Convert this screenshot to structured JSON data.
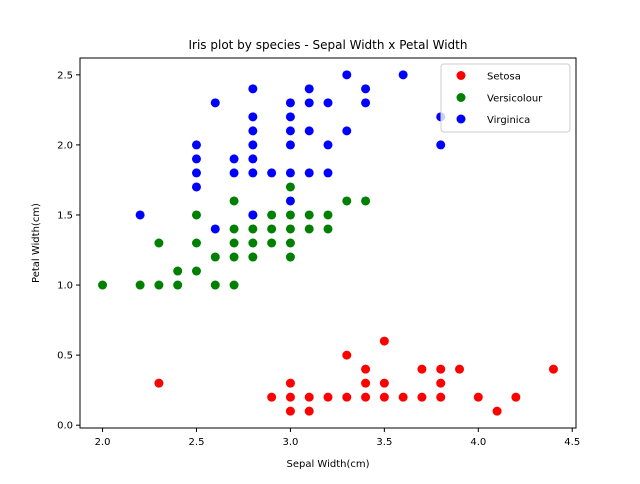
{
  "chart_data": {
    "type": "scatter",
    "title": "Iris plot by species - Sepal Width x Petal Width",
    "xlabel": "Sepal Width(cm)",
    "ylabel": "Petal Width(cm)",
    "xlim": [
      1.88,
      4.52
    ],
    "ylim": [
      -0.02,
      2.62
    ],
    "x_ticks": [
      2.0,
      2.5,
      3.0,
      3.5,
      4.0,
      4.5
    ],
    "x_tick_labels": [
      "2.0",
      "2.5",
      "3.0",
      "3.5",
      "4.0",
      "4.5"
    ],
    "y_ticks": [
      0.0,
      0.5,
      1.0,
      1.5,
      2.0,
      2.5
    ],
    "y_tick_labels": [
      "0.0",
      "0.5",
      "1.0",
      "1.5",
      "2.0",
      "2.5"
    ],
    "grid": false,
    "legend_position": "upper right",
    "series": [
      {
        "name": "Setosa",
        "color": "#ff0000",
        "points": [
          [
            2.3,
            0.3
          ],
          [
            2.9,
            0.2
          ],
          [
            3.0,
            0.3
          ],
          [
            3.0,
            0.2
          ],
          [
            3.0,
            0.1
          ],
          [
            3.1,
            0.2
          ],
          [
            3.1,
            0.1
          ],
          [
            3.2,
            0.2
          ],
          [
            3.3,
            0.5
          ],
          [
            3.3,
            0.2
          ],
          [
            3.4,
            0.4
          ],
          [
            3.4,
            0.3
          ],
          [
            3.4,
            0.2
          ],
          [
            3.5,
            0.6
          ],
          [
            3.5,
            0.3
          ],
          [
            3.5,
            0.2
          ],
          [
            3.6,
            0.2
          ],
          [
            3.7,
            0.4
          ],
          [
            3.7,
            0.2
          ],
          [
            3.8,
            0.4
          ],
          [
            3.8,
            0.3
          ],
          [
            3.8,
            0.2
          ],
          [
            3.9,
            0.4
          ],
          [
            4.0,
            0.2
          ],
          [
            4.1,
            0.1
          ],
          [
            4.2,
            0.2
          ],
          [
            4.4,
            0.4
          ]
        ]
      },
      {
        "name": "Versicolour",
        "color": "#008000",
        "points": [
          [
            2.0,
            1.0
          ],
          [
            2.2,
            1.0
          ],
          [
            2.3,
            1.3
          ],
          [
            2.3,
            1.0
          ],
          [
            2.4,
            1.1
          ],
          [
            2.4,
            1.0
          ],
          [
            2.5,
            1.5
          ],
          [
            2.5,
            1.3
          ],
          [
            2.5,
            1.1
          ],
          [
            2.6,
            1.2
          ],
          [
            2.6,
            1.0
          ],
          [
            2.7,
            1.6
          ],
          [
            2.7,
            1.4
          ],
          [
            2.7,
            1.3
          ],
          [
            2.7,
            1.2
          ],
          [
            2.7,
            1.0
          ],
          [
            2.8,
            1.5
          ],
          [
            2.8,
            1.4
          ],
          [
            2.8,
            1.3
          ],
          [
            2.8,
            1.2
          ],
          [
            2.9,
            1.5
          ],
          [
            2.9,
            1.4
          ],
          [
            2.9,
            1.3
          ],
          [
            3.0,
            1.7
          ],
          [
            3.0,
            1.5
          ],
          [
            3.0,
            1.4
          ],
          [
            3.0,
            1.3
          ],
          [
            3.0,
            1.2
          ],
          [
            3.1,
            1.5
          ],
          [
            3.1,
            1.4
          ],
          [
            3.2,
            1.5
          ],
          [
            3.2,
            1.4
          ],
          [
            3.3,
            1.6
          ],
          [
            3.4,
            1.6
          ]
        ]
      },
      {
        "name": "Virginica",
        "color": "#0000ff",
        "points": [
          [
            2.2,
            1.5
          ],
          [
            2.5,
            2.0
          ],
          [
            2.5,
            1.9
          ],
          [
            2.5,
            1.8
          ],
          [
            2.5,
            1.7
          ],
          [
            2.6,
            2.3
          ],
          [
            2.6,
            1.4
          ],
          [
            2.7,
            1.9
          ],
          [
            2.7,
            1.8
          ],
          [
            2.8,
            2.4
          ],
          [
            2.8,
            2.2
          ],
          [
            2.8,
            2.1
          ],
          [
            2.8,
            2.0
          ],
          [
            2.8,
            1.9
          ],
          [
            2.8,
            1.8
          ],
          [
            2.8,
            1.5
          ],
          [
            2.9,
            1.8
          ],
          [
            3.0,
            2.3
          ],
          [
            3.0,
            2.2
          ],
          [
            3.0,
            2.1
          ],
          [
            3.0,
            2.0
          ],
          [
            3.0,
            1.8
          ],
          [
            3.0,
            1.6
          ],
          [
            3.1,
            2.4
          ],
          [
            3.1,
            2.3
          ],
          [
            3.1,
            2.1
          ],
          [
            3.1,
            1.8
          ],
          [
            3.2,
            2.3
          ],
          [
            3.2,
            2.0
          ],
          [
            3.2,
            1.8
          ],
          [
            3.3,
            2.5
          ],
          [
            3.3,
            2.1
          ],
          [
            3.4,
            2.4
          ],
          [
            3.4,
            2.3
          ],
          [
            3.6,
            2.5
          ],
          [
            3.8,
            2.2
          ],
          [
            3.8,
            2.0
          ]
        ]
      }
    ]
  }
}
